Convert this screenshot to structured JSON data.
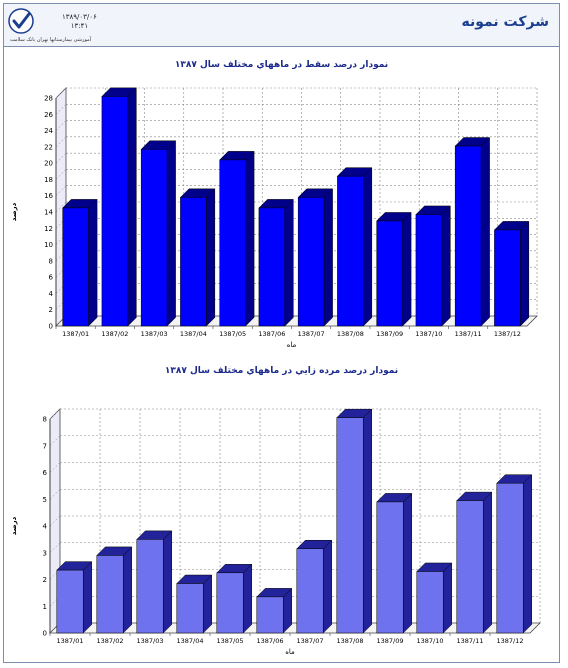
{
  "header": {
    "company": "شرکت نمونه",
    "date": "۱۳۸۹/۰۳/۰۶",
    "time": "۱۳:۴۱",
    "system_name": "آموزشی بیمارستانها تهران بانک سلامت"
  },
  "colors": {
    "chart1_bar": "#0000ff",
    "chart1_side": "#00008b",
    "chart2_bar": "#6f72ee",
    "chart2_side": "#22239a",
    "grid": "#888888",
    "title": "#1b2a8c"
  },
  "chart_data": [
    {
      "type": "bar",
      "title": "نمودار درصد سقط در ماههاي مختلف سال ۱۳۸۷",
      "xlabel": "ماه",
      "ylabel": "درصد",
      "ylim": [
        0,
        28
      ],
      "ytick_step": 2,
      "grid": true,
      "categories": [
        "1387/01",
        "1387/02",
        "1387/03",
        "1387/04",
        "1387/05",
        "1387/06",
        "1387/07",
        "1387/08",
        "1387/09",
        "1387/10",
        "1387/11",
        "1387/12"
      ],
      "values": [
        14.5,
        28.2,
        21.7,
        15.8,
        20.4,
        14.5,
        15.8,
        18.4,
        12.9,
        13.7,
        22.1,
        11.8
      ]
    },
    {
      "type": "bar",
      "title": "نمودار درصد مرده زايي در ماههاي مختلف سال ۱۳۸۷",
      "xlabel": "ماه",
      "ylabel": "درصد",
      "ylim": [
        0,
        8
      ],
      "ytick_step": 1,
      "grid": true,
      "categories": [
        "1387/01",
        "1387/02",
        "1387/03",
        "1387/04",
        "1387/05",
        "1387/06",
        "1387/07",
        "1387/08",
        "1387/09",
        "1387/10",
        "1387/11",
        "1387/12"
      ],
      "values": [
        2.35,
        2.9,
        3.5,
        1.85,
        2.25,
        1.35,
        3.15,
        8.05,
        4.9,
        2.3,
        4.95,
        5.6
      ]
    }
  ]
}
